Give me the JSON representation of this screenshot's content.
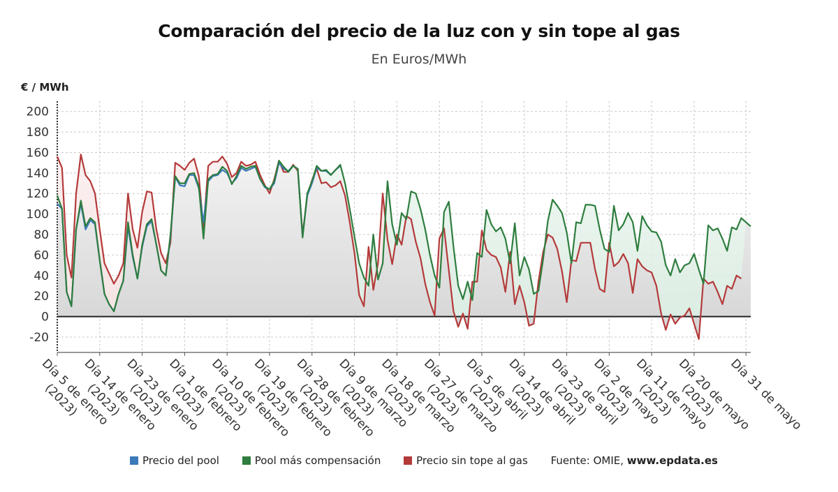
{
  "header": {
    "title": "Comparación del precio de la luz con y sin tope al gas",
    "subtitle": "En Euros/MWh"
  },
  "legend": {
    "items": [
      {
        "label": "Precio del pool",
        "color": "#3a7ab8"
      },
      {
        "label": "Pool más compensación",
        "color": "#2e7d3e"
      },
      {
        "label": "Precio sin tope al gas",
        "color": "#b43a3a"
      }
    ],
    "source_prefix": "Fuente: OMIE,",
    "source_site": "www.epdata.es"
  },
  "chart_data": {
    "type": "line",
    "ylabel": "€ / MWh",
    "ylim": [
      -35,
      210
    ],
    "yticks": [
      -20,
      0,
      20,
      40,
      60,
      80,
      100,
      120,
      140,
      160,
      180,
      200
    ],
    "x_tick_labels": [
      {
        "day": "Día 5 de enero",
        "year": "(2023)"
      },
      {
        "day": "Día 14 de enero",
        "year": "(2023)"
      },
      {
        "day": "Día 23 de enero",
        "year": "(2023)"
      },
      {
        "day": "Día 1 de febrero",
        "year": "(2023)"
      },
      {
        "day": "Día 10 de febrero",
        "year": "(2023)"
      },
      {
        "day": "Día 19 de febrero",
        "year": "(2023)"
      },
      {
        "day": "Día 28 de febrero",
        "year": "(2023)"
      },
      {
        "day": "Día 9 de marzo",
        "year": "(2023)"
      },
      {
        "day": "Día 18 de marzo",
        "year": "(2023)"
      },
      {
        "day": "Día 27 de marzo",
        "year": "(2023)"
      },
      {
        "day": "Día 5 de abril",
        "year": "(2023)"
      },
      {
        "day": "Día 14 de abril",
        "year": "(2023)"
      },
      {
        "day": "Día 23 de abril",
        "year": "(2023)"
      },
      {
        "day": "Día 2 de mayo",
        "year": "(2023)"
      },
      {
        "day": "Día 11 de mayo",
        "year": "(2023)"
      },
      {
        "day": "Día 20 de mayo",
        "year": "(2023)"
      },
      {
        "day": "Día 31 de mayo",
        "year": ""
      }
    ],
    "x_tick_index": [
      0,
      9,
      18,
      27,
      36,
      45,
      54,
      63,
      72,
      81,
      90,
      99,
      108,
      117,
      126,
      135,
      146
    ],
    "grid": true,
    "legend_position": "bottom",
    "series": [
      {
        "name": "Precio del pool",
        "color": "#3a7ab8",
        "values": [
          110,
          105,
          24,
          10,
          85,
          110,
          85,
          94,
          90,
          55,
          22,
          12,
          5,
          22,
          35,
          88,
          58,
          37,
          68,
          88,
          93,
          70,
          45,
          40,
          78,
          136,
          128,
          127,
          138,
          138,
          125,
          92,
          132,
          137,
          138,
          143,
          140,
          130,
          135,
          145,
          142,
          144,
          146,
          134,
          126,
          124,
          130,
          150,
          144,
          142,
          147,
          144,
          78,
          118,
          130,
          145,
          142,
          142,
          138,
          143,
          147
        ]
      },
      {
        "name": "Pool más compensación",
        "color": "#2e7d3e",
        "values": [
          118,
          105,
          24,
          10,
          85,
          113,
          88,
          96,
          92,
          55,
          22,
          12,
          5,
          22,
          35,
          92,
          60,
          37,
          70,
          90,
          95,
          70,
          45,
          40,
          80,
          137,
          130,
          130,
          139,
          140,
          127,
          76,
          134,
          138,
          139,
          146,
          142,
          129,
          137,
          147,
          144,
          146,
          147,
          134,
          127,
          124,
          132,
          152,
          146,
          141,
          147,
          144,
          77,
          120,
          132,
          147,
          142,
          143,
          138,
          143,
          148,
          130,
          105,
          78,
          52,
          38,
          30,
          80,
          36,
          52,
          132,
          90,
          70,
          101,
          95,
          122,
          120,
          105,
          85,
          60,
          40,
          28,
          102,
          112,
          68,
          30,
          17,
          34,
          16,
          62,
          58,
          104,
          90,
          83,
          87,
          76,
          52,
          91,
          40,
          58,
          46,
          22,
          25,
          56,
          93,
          114,
          108,
          101,
          82,
          52,
          92,
          91,
          109,
          109,
          108,
          85,
          66,
          63,
          108,
          84,
          90,
          101,
          92,
          64,
          98,
          89,
          83,
          82,
          73,
          50,
          40,
          56,
          43,
          50,
          52,
          61,
          46,
          32,
          89,
          84,
          86,
          76,
          64,
          87,
          85,
          96,
          92,
          88
        ]
      },
      {
        "name": "Precio sin tope al gas",
        "color": "#b43a3a",
        "values": [
          156,
          145,
          60,
          38,
          120,
          158,
          138,
          132,
          120,
          85,
          52,
          42,
          32,
          40,
          52,
          120,
          85,
          67,
          102,
          122,
          121,
          85,
          62,
          52,
          72,
          150,
          147,
          143,
          150,
          154,
          137,
          86,
          147,
          151,
          151,
          156,
          149,
          136,
          140,
          151,
          147,
          148,
          151,
          138,
          128,
          120,
          134,
          152,
          141,
          141,
          148,
          142,
          80,
          118,
          133,
          144,
          130,
          131,
          126,
          128,
          132,
          118,
          92,
          62,
          21,
          10,
          68,
          26,
          52,
          120,
          75,
          51,
          80,
          70,
          98,
          95,
          73,
          57,
          32,
          14,
          1,
          76,
          86,
          45,
          5,
          -10,
          3,
          -12,
          34,
          34,
          84,
          65,
          60,
          58,
          48,
          24,
          63,
          12,
          30,
          14,
          -9,
          -7,
          34,
          63,
          80,
          77,
          66,
          44,
          14,
          55,
          54,
          72,
          72,
          72,
          46,
          27,
          24,
          72,
          49,
          53,
          61,
          52,
          23,
          56,
          49,
          45,
          43,
          30,
          3,
          -13,
          2,
          -7,
          -1,
          1,
          8,
          -7,
          -22,
          37,
          32,
          34,
          24,
          12,
          30,
          27,
          40,
          37
        ]
      }
    ]
  }
}
